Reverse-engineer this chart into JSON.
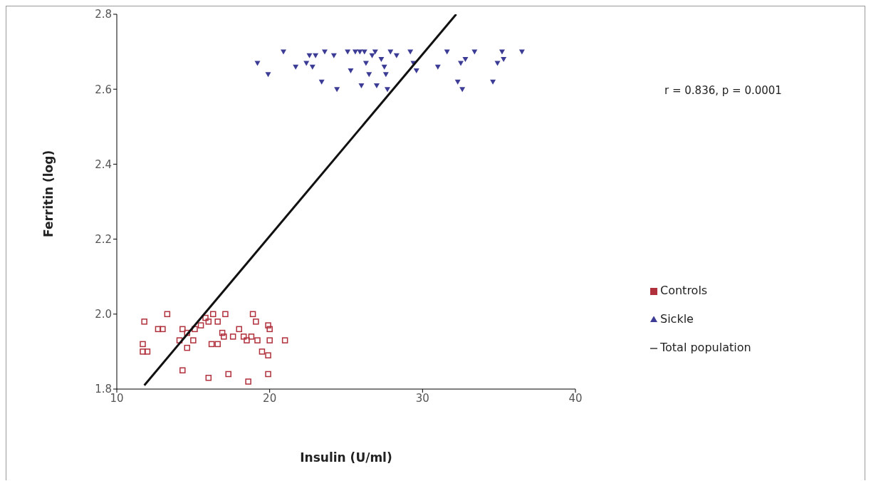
{
  "chart_data": {
    "type": "scatter",
    "xlabel": "Insulin (U/ml)",
    "ylabel": "Ferritin (log)",
    "xlim": [
      10,
      40
    ],
    "xticks": [
      10,
      20,
      30,
      40
    ],
    "ylim": [
      1.8,
      2.8
    ],
    "yticks": [
      {
        "value": 1.8,
        "label": "1.8"
      },
      {
        "value": 2.0,
        "label": "2.0"
      },
      {
        "value": 2.2,
        "label": "2.2"
      },
      {
        "value": 2.4,
        "label": "2.4"
      },
      {
        "value": 2.6,
        "label": "2.6"
      },
      {
        "value": 2.8,
        "label": "2.8"
      }
    ],
    "grid": false,
    "legend": "right",
    "annotations": [
      "r = 0.836, p = 0.0001"
    ],
    "series": [
      {
        "name": "Controls",
        "color": "#b0303c",
        "marker": "square",
        "x": [
          11.8,
          11.7,
          11.7,
          12.0,
          12.7,
          13.0,
          13.3,
          14.3,
          14.1,
          14.3,
          14.6,
          14.6,
          15.0,
          15.1,
          15.5,
          15.8,
          16.0,
          16.3,
          16.6,
          16.2,
          16.6,
          16.9,
          17.1,
          17.0,
          17.6,
          17.3,
          16.0,
          18.0,
          18.3,
          18.6,
          18.9,
          19.1,
          18.8,
          19.2,
          19.5,
          19.9,
          20.0,
          19.9,
          20.0,
          19.9,
          21.0,
          18.5
        ],
        "values": [
          1.98,
          1.92,
          1.9,
          1.9,
          1.96,
          1.96,
          2.0,
          1.96,
          1.93,
          1.85,
          1.91,
          1.95,
          1.93,
          1.96,
          1.97,
          1.99,
          1.98,
          2.0,
          1.98,
          1.92,
          1.92,
          1.95,
          2.0,
          1.94,
          1.94,
          1.84,
          1.83,
          1.96,
          1.94,
          1.82,
          2.0,
          1.98,
          1.94,
          1.93,
          1.9,
          1.97,
          1.96,
          1.89,
          1.93,
          1.84,
          1.93,
          1.93
        ]
      },
      {
        "name": "Sickle",
        "color": "#3c3c96",
        "marker": "triangle",
        "x": [
          19.2,
          19.9,
          20.9,
          21.7,
          22.4,
          22.6,
          22.8,
          23.0,
          23.4,
          23.6,
          24.2,
          24.4,
          25.1,
          25.3,
          25.6,
          25.9,
          26.2,
          26.0,
          26.3,
          26.5,
          26.7,
          26.9,
          27.0,
          27.3,
          27.5,
          27.6,
          27.7,
          27.9,
          28.3,
          29.2,
          29.4,
          29.6,
          31.0,
          31.6,
          32.3,
          32.5,
          32.6,
          32.8,
          33.4,
          34.6,
          34.9,
          35.2,
          35.3,
          36.5
        ],
        "values": [
          2.67,
          2.64,
          2.7,
          2.66,
          2.67,
          2.69,
          2.66,
          2.69,
          2.62,
          2.7,
          2.69,
          2.6,
          2.7,
          2.65,
          2.7,
          2.7,
          2.7,
          2.61,
          2.67,
          2.64,
          2.69,
          2.7,
          2.61,
          2.68,
          2.66,
          2.64,
          2.6,
          2.7,
          2.69,
          2.7,
          2.67,
          2.65,
          2.66,
          2.7,
          2.62,
          2.67,
          2.6,
          2.68,
          2.7,
          2.62,
          2.67,
          2.7,
          2.68,
          2.7
        ]
      },
      {
        "name": "Total population",
        "type": "line",
        "color": "#111111",
        "marker": "none",
        "x": [
          11.8,
          32.2
        ],
        "values": [
          1.81,
          2.8
        ]
      }
    ]
  }
}
